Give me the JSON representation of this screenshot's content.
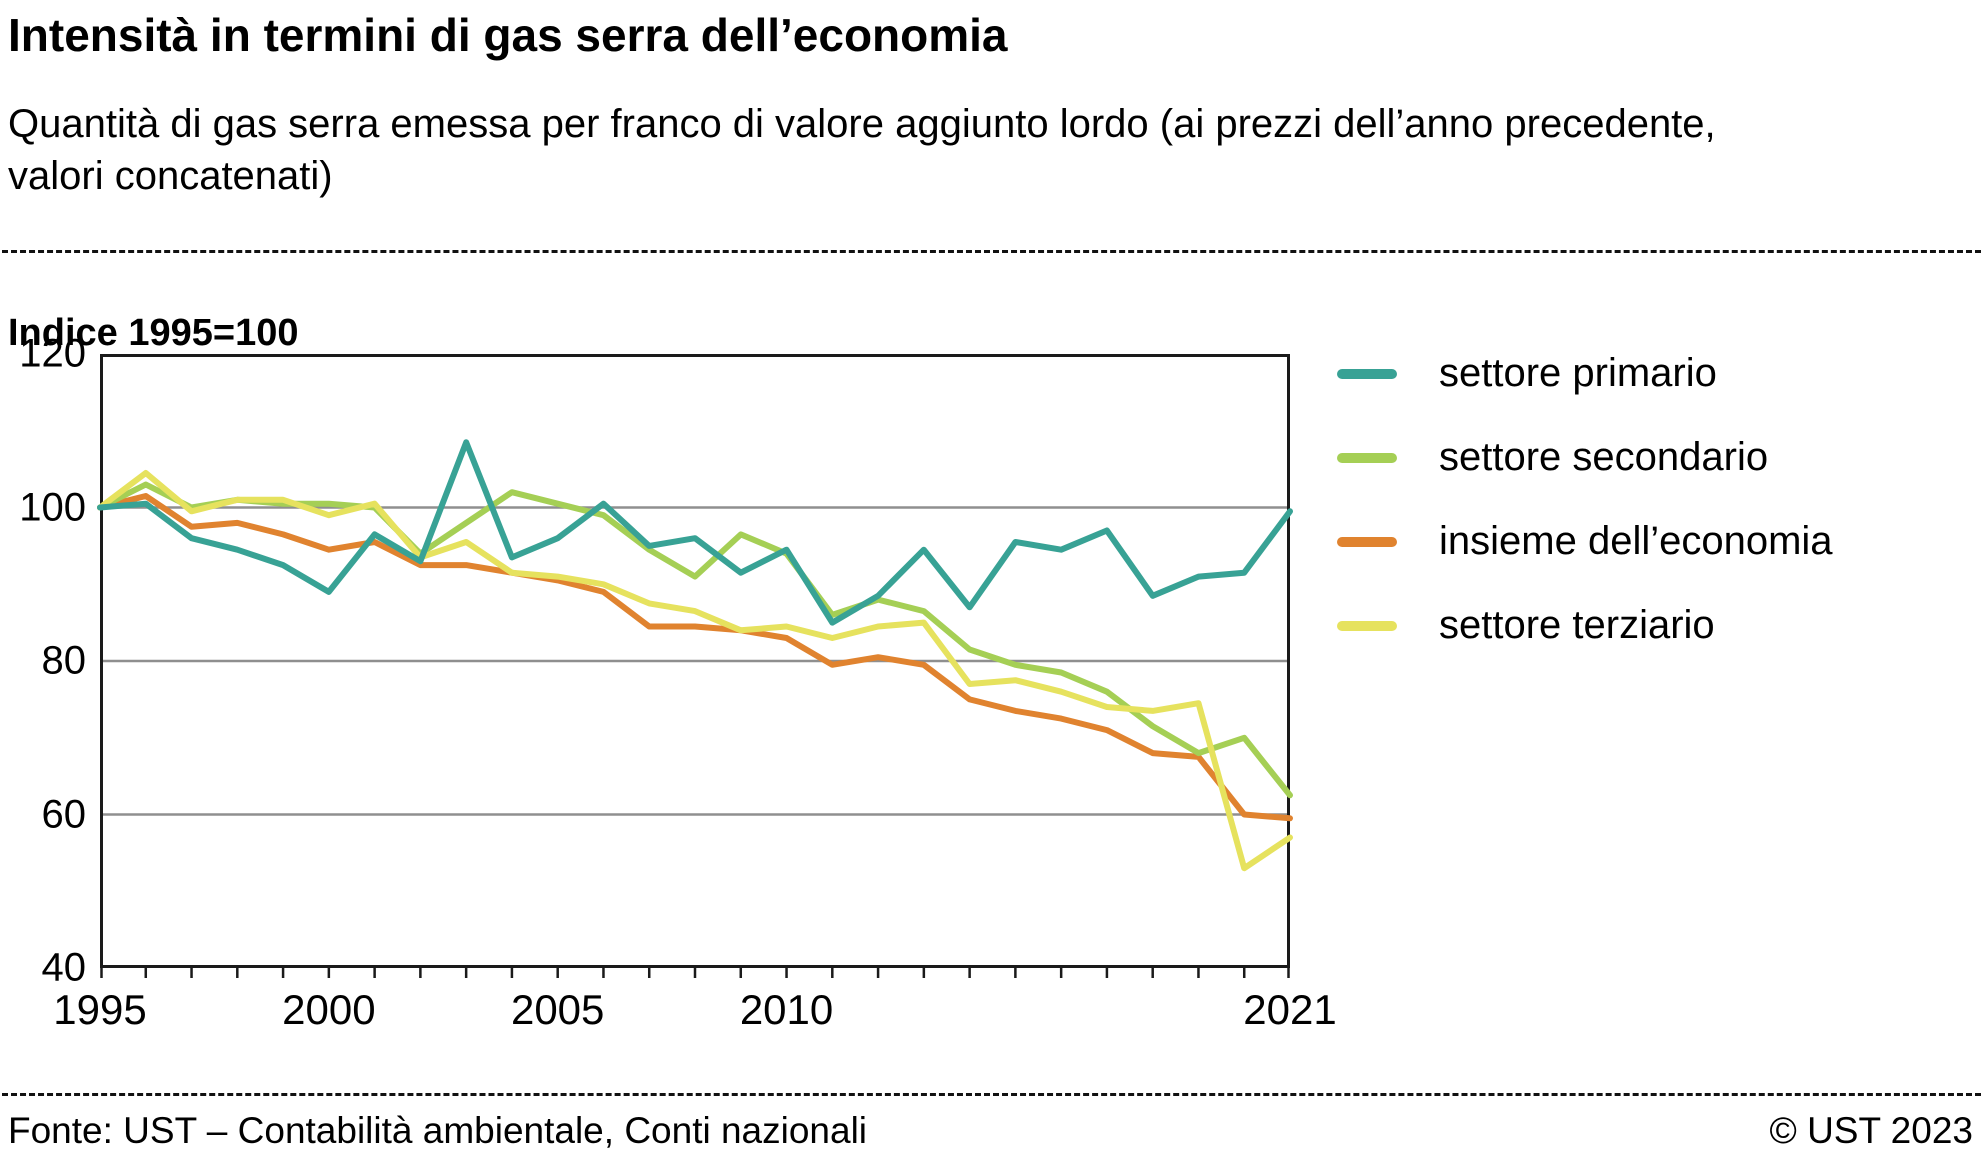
{
  "header": {
    "title": "Intensità in termini di gas serra dell’economia",
    "subtitle": "Quantità di gas serra emessa per franco di valore aggiunto lordo (ai prezzi dell’anno precedente, valori concatenati)"
  },
  "index_label": "Indice 1995=100",
  "footer": {
    "source": "Fonte: UST – Contabilità ambientale, Conti nazionali",
    "copyright": "© UST 2023"
  },
  "colors": {
    "grid": "#8f8f8f",
    "frame": "#1a1a1a"
  },
  "chart_data": {
    "type": "line",
    "title": "Intensità in termini di gas serra dell’economia",
    "ylabel": "Indice 1995=100",
    "x": [
      1995,
      1996,
      1997,
      1998,
      1999,
      2000,
      2001,
      2002,
      2003,
      2004,
      2005,
      2006,
      2007,
      2008,
      2009,
      2010,
      2011,
      2012,
      2013,
      2014,
      2015,
      2016,
      2017,
      2018,
      2019,
      2020,
      2021
    ],
    "series": [
      {
        "name": "settore primario",
        "color": "#38a295",
        "values": [
          100,
          100.5,
          96,
          94.5,
          92.5,
          89,
          96.5,
          93,
          108.5,
          93.5,
          96,
          100.5,
          95,
          96,
          91.5,
          94.5,
          85,
          88.5,
          94.5,
          87,
          95.5,
          94.5,
          97,
          88.5,
          91,
          91.5,
          99.5
        ]
      },
      {
        "name": "settore secondario",
        "color": "#a5cf55",
        "values": [
          100,
          103,
          100,
          101,
          100.5,
          100.5,
          100,
          94,
          98,
          102,
          100.5,
          99,
          94.5,
          91,
          96.5,
          94,
          86,
          88,
          86.5,
          81.5,
          79.5,
          78.5,
          76,
          71.5,
          68,
          70,
          62.5
        ]
      },
      {
        "name": "insieme dell’economia",
        "color": "#e0832f",
        "values": [
          100,
          101.5,
          97.5,
          98,
          96.5,
          94.5,
          95.5,
          92.5,
          92.5,
          91.5,
          90.5,
          89,
          84.5,
          84.5,
          84,
          83,
          79.5,
          80.5,
          79.5,
          75,
          73.5,
          72.5,
          71,
          68,
          67.5,
          60,
          59.5
        ]
      },
      {
        "name": "settore terziario",
        "color": "#e6e25e",
        "values": [
          100,
          104.5,
          99.5,
          101,
          101,
          99,
          100.5,
          93.5,
          95.5,
          91.5,
          91,
          90,
          87.5,
          86.5,
          84,
          84.5,
          83,
          84.5,
          85,
          77,
          77.5,
          76,
          74,
          73.5,
          74.5,
          53,
          57
        ]
      }
    ],
    "ylim": [
      40,
      120
    ],
    "yticks": [
      120,
      100,
      80,
      60,
      40
    ],
    "xticks": [
      1995,
      2000,
      2005,
      2010,
      2021
    ],
    "gridlines": [
      100,
      80,
      60
    ],
    "grid": true,
    "legend_position": "right"
  }
}
